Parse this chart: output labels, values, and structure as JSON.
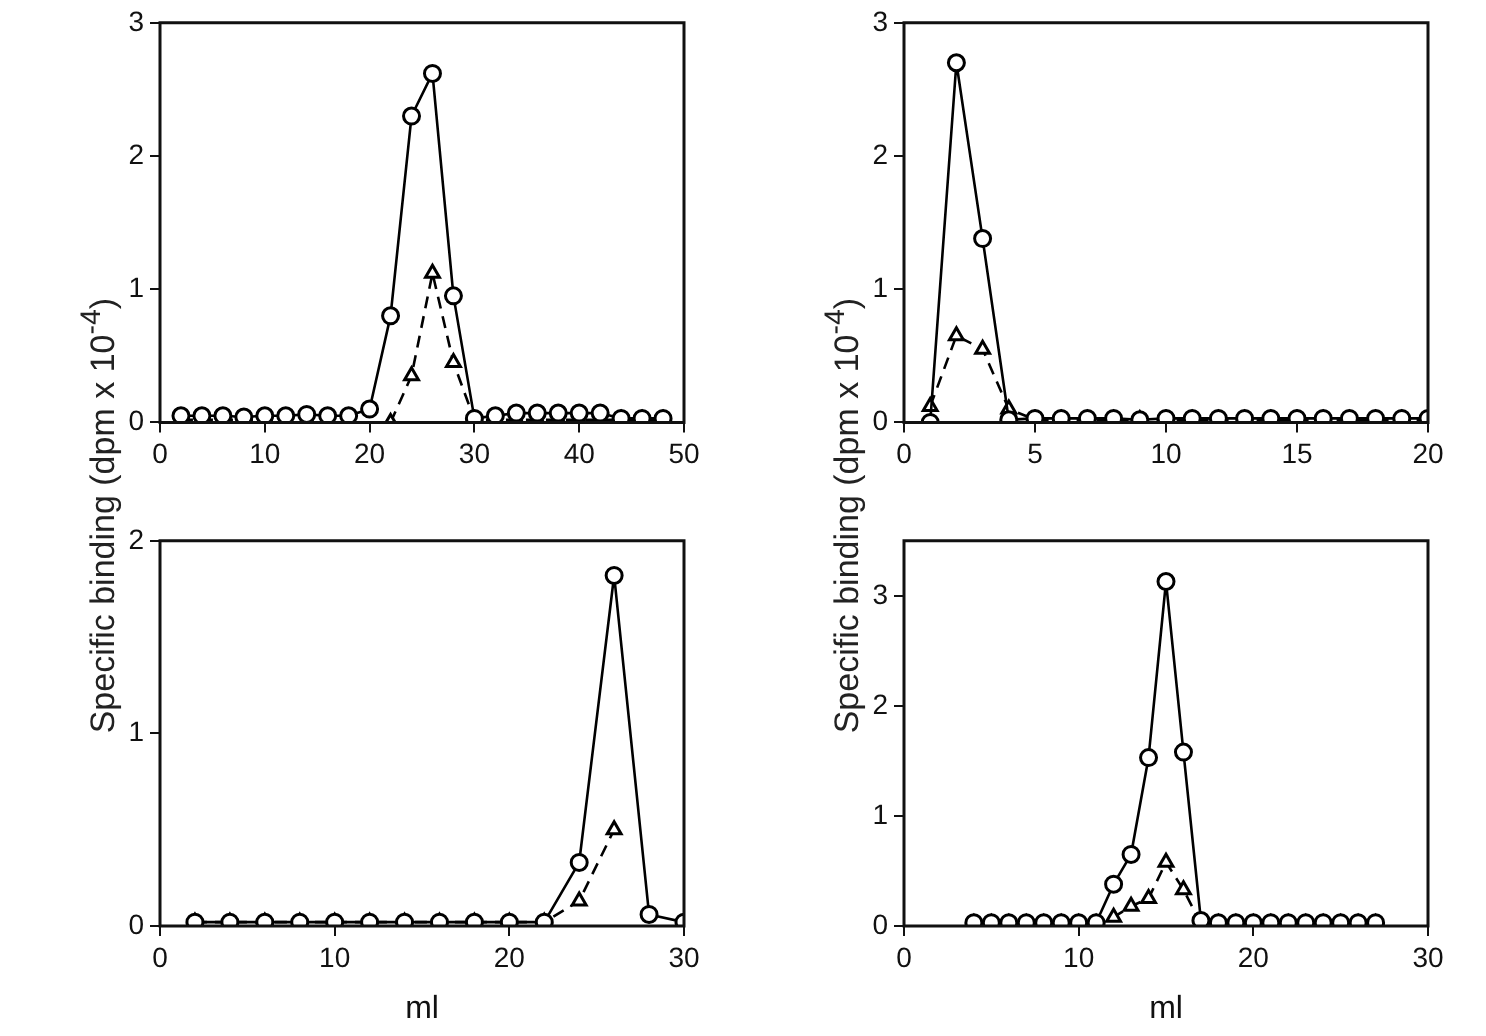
{
  "chart_data": [
    {
      "type": "line",
      "ylabel": "Specific binding (dpm x 10$^{-4}$)",
      "xlim": [
        0,
        50
      ],
      "xticks": [
        0,
        10,
        20,
        30,
        40,
        50
      ],
      "ylim": [
        0,
        3
      ],
      "yticks": [
        0,
        1,
        2,
        3
      ],
      "grid": false,
      "x": [
        2,
        4,
        6,
        8,
        10,
        12,
        14,
        16,
        18,
        20,
        22,
        24,
        26,
        28,
        30,
        32,
        34,
        36,
        38,
        40,
        42,
        44,
        46,
        48
      ],
      "series": [
        {
          "color": "#000000",
          "marker": "circle",
          "line_style": "solid",
          "values": [
            0.05,
            0.05,
            0.05,
            0.04,
            0.05,
            0.05,
            0.06,
            0.05,
            0.05,
            0.1,
            0.8,
            2.3,
            2.62,
            0.95,
            0.03,
            0.05,
            0.07,
            0.07,
            0.07,
            0.07,
            0.07,
            0.03,
            0.03,
            0.03
          ]
        },
        {
          "color": "#000000",
          "marker": "triangle",
          "line_style": "dashed",
          "values": [
            0.02,
            0.02,
            0.02,
            0.02,
            0.02,
            0.02,
            0.02,
            0.02,
            0.02,
            null,
            0.0,
            0.35,
            1.12,
            0.45,
            0.02,
            0.02,
            0.02,
            0.02,
            0.02,
            0.02,
            0.02,
            0.02,
            0.02,
            0.02
          ]
        }
      ]
    },
    {
      "type": "line",
      "ylabel": "Specific binding (dpm x 10$^{-4}$)",
      "xlim": [
        0,
        20
      ],
      "xticks": [
        0,
        5,
        10,
        15,
        20
      ],
      "ylim": [
        0,
        3
      ],
      "yticks": [
        0,
        1,
        2,
        3
      ],
      "grid": false,
      "x": [
        1,
        2,
        3,
        4,
        5,
        6,
        7,
        8,
        9,
        10,
        11,
        12,
        13,
        14,
        15,
        16,
        17,
        18,
        19,
        20
      ],
      "series": [
        {
          "color": "#000000",
          "marker": "circle",
          "line_style": "solid",
          "values": [
            0.0,
            2.7,
            1.38,
            0.02,
            0.03,
            0.03,
            0.03,
            0.03,
            0.02,
            0.03,
            0.03,
            0.03,
            0.03,
            0.03,
            0.03,
            0.03,
            0.03,
            0.03,
            0.03,
            0.03
          ]
        },
        {
          "color": "#000000",
          "marker": "triangle",
          "line_style": "dashed",
          "values": [
            0.12,
            0.65,
            0.55,
            0.1,
            0.02,
            0.02,
            0.02,
            0.02,
            0.02,
            0.02,
            0.02,
            0.02,
            0.02,
            0.02,
            0.02,
            0.02,
            0.02,
            0.02,
            0.02,
            0.02
          ]
        }
      ]
    },
    {
      "type": "line",
      "xlabel": "ml",
      "xlim": [
        0,
        30
      ],
      "xticks": [
        0,
        10,
        20,
        30
      ],
      "ylim": [
        0,
        2
      ],
      "yticks": [
        0,
        1,
        2
      ],
      "grid": false,
      "x": [
        2,
        4,
        6,
        8,
        10,
        12,
        14,
        16,
        18,
        20,
        22,
        24,
        26,
        28,
        30
      ],
      "series": [
        {
          "color": "#000000",
          "marker": "circle",
          "line_style": "solid",
          "values": [
            0.02,
            0.02,
            0.02,
            0.02,
            0.02,
            0.02,
            0.02,
            0.02,
            0.02,
            0.02,
            0.02,
            0.33,
            1.82,
            0.06,
            0.02
          ]
        },
        {
          "color": "#000000",
          "marker": "triangle",
          "line_style": "dashed",
          "values": [
            0.02,
            0.02,
            0.02,
            0.02,
            0.02,
            0.02,
            0.02,
            0.02,
            0.02,
            0.02,
            0.02,
            0.13,
            0.5,
            null,
            0.02
          ]
        }
      ]
    },
    {
      "type": "line",
      "xlabel": "ml",
      "xlim": [
        0,
        30
      ],
      "xticks": [
        0,
        10,
        20,
        30
      ],
      "ylim": [
        0,
        3.5
      ],
      "yticks": [
        0,
        1,
        2,
        3
      ],
      "grid": false,
      "x": [
        4,
        5,
        6,
        7,
        8,
        9,
        10,
        11,
        12,
        13,
        14,
        15,
        16,
        17,
        18,
        19,
        20,
        21,
        22,
        23,
        24,
        25,
        26,
        27
      ],
      "series": [
        {
          "color": "#000000",
          "marker": "circle",
          "line_style": "solid",
          "values": [
            0.03,
            0.03,
            0.03,
            0.03,
            0.03,
            0.03,
            0.03,
            0.03,
            0.38,
            0.65,
            1.53,
            3.13,
            1.58,
            0.05,
            0.03,
            0.03,
            0.03,
            0.03,
            0.03,
            0.03,
            0.03,
            0.03,
            0.03,
            0.03
          ]
        },
        {
          "color": "#000000",
          "marker": "triangle",
          "line_style": "dashed",
          "values": [
            0.02,
            0.02,
            0.02,
            0.02,
            0.02,
            0.02,
            0.02,
            0.02,
            0.08,
            0.18,
            0.25,
            0.58,
            0.33,
            0.02,
            0.02,
            0.02,
            0.02,
            0.02,
            0.02,
            0.02,
            0.02,
            0.02,
            0.02,
            0.02
          ]
        }
      ]
    }
  ]
}
